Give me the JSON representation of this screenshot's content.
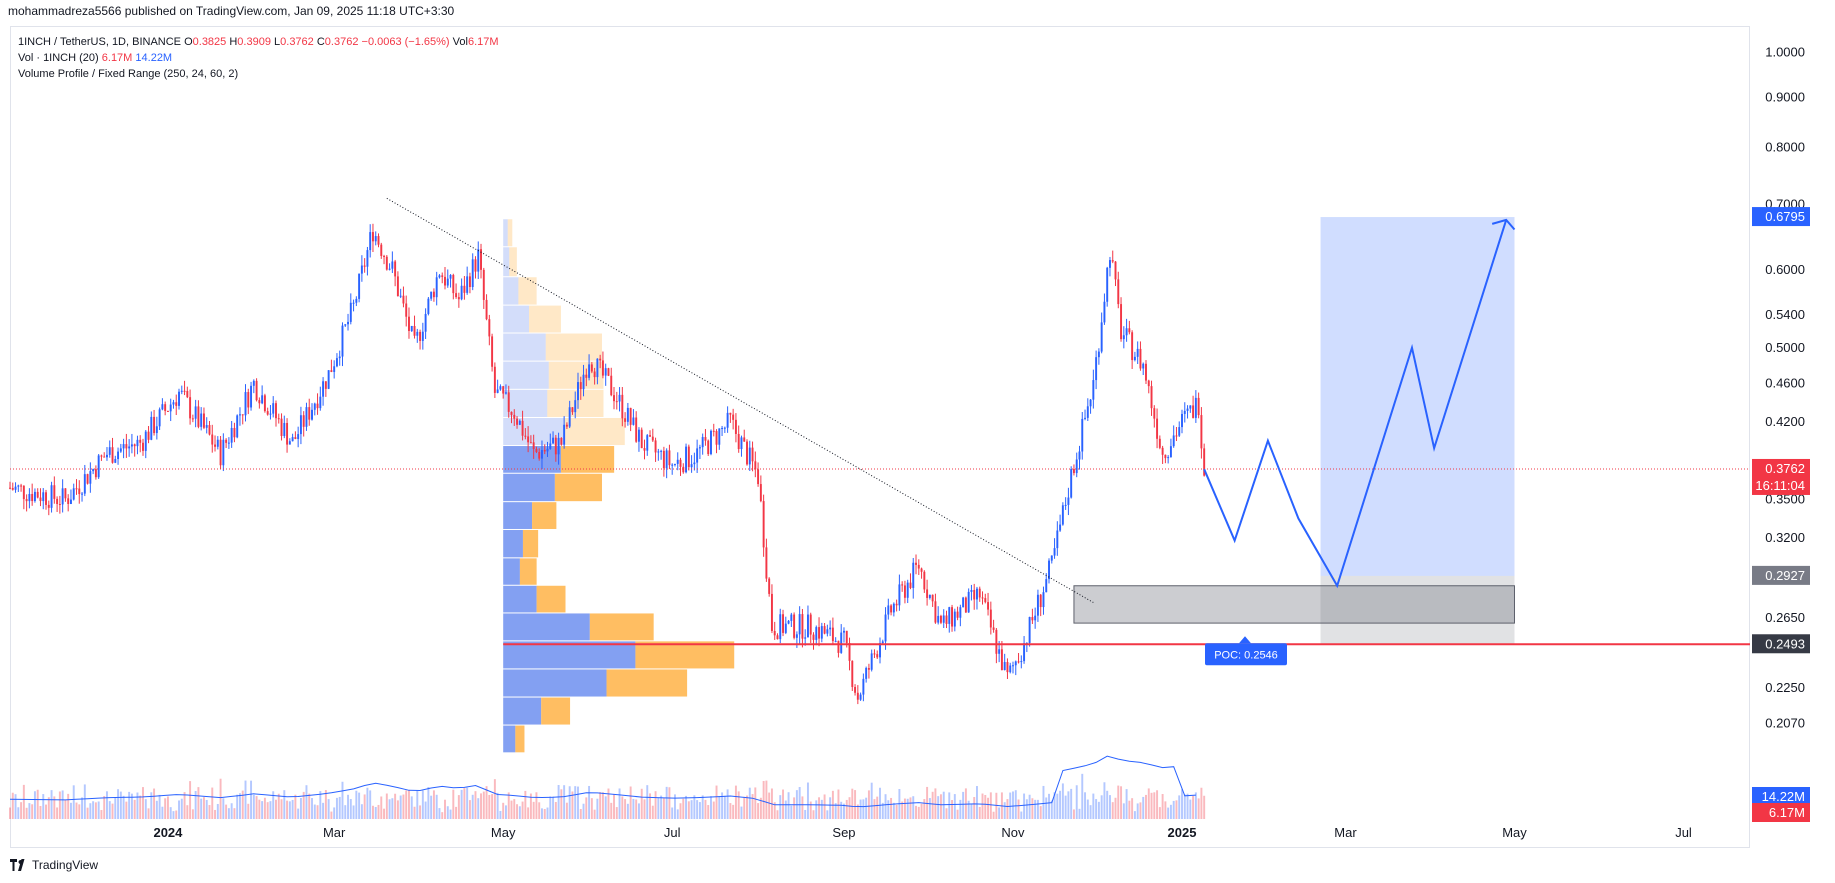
{
  "header": {
    "published": "mohammadreza5566 published on TradingView.com, Jan 09, 2025 11:18 UTC+3:30"
  },
  "legend": {
    "symbol": "1INCH / TetherUS, 1D, BINANCE",
    "ohlc": [
      {
        "k": "O",
        "v": "0.3825"
      },
      {
        "k": "H",
        "v": "0.3909"
      },
      {
        "k": "L",
        "v": "0.3762"
      },
      {
        "k": "C",
        "v": "0.3762"
      }
    ],
    "change": "−0.0063 (−1.65%)",
    "vol_key": "Vol",
    "vol_value": "6.17M",
    "vol_line_name": "Vol · 1INCH (20)",
    "vol_line_v1": "6.17M",
    "vol_line_v2": "14.22M",
    "vp_line": "Volume Profile / Fixed Range (250, 24, 60, 2)"
  },
  "price_axis": {
    "ticks": [
      "1.0000",
      "0.9000",
      "0.8000",
      "0.7000",
      "0.6000",
      "0.5400",
      "0.5000",
      "0.4600",
      "0.4200",
      "0.3500",
      "0.3200",
      "0.2650",
      "0.2250",
      "0.2070"
    ],
    "badges": [
      {
        "label": "0.6795",
        "color": "#2962ff",
        "text_color": "#ffffff"
      },
      {
        "label": "0.3762",
        "color": "#f23645",
        "text_color": "#ffffff"
      },
      {
        "label": "16:11:04",
        "color": "#f23645",
        "text_color": "#ffffff"
      },
      {
        "label": "0.2927",
        "color": "#787b86",
        "text_color": "#ffffff"
      },
      {
        "label": "0.2493",
        "color": "#363a45",
        "text_color": "#ffffff"
      },
      {
        "label": "14.22M",
        "color": "#2962ff",
        "text_color": "#ffffff"
      },
      {
        "label": "6.17M",
        "color": "#f23645",
        "text_color": "#ffffff"
      }
    ]
  },
  "time_axis": {
    "labels": [
      {
        "t": "2024",
        "bold": true
      },
      {
        "t": "Mar",
        "bold": false
      },
      {
        "t": "May",
        "bold": false
      },
      {
        "t": "Jul",
        "bold": false
      },
      {
        "t": "Sep",
        "bold": false
      },
      {
        "t": "Nov",
        "bold": false
      },
      {
        "t": "2025",
        "bold": true
      },
      {
        "t": "Mar",
        "bold": false
      },
      {
        "t": "May",
        "bold": false
      },
      {
        "t": "Jul",
        "bold": false
      }
    ]
  },
  "poc_label": "POC: 0.2546",
  "footer": {
    "brand": "TradingView"
  },
  "colors": {
    "up": "#2962ff",
    "down": "#f23645",
    "vp_up": "#6d8ff0",
    "vp_down": "#ffb347",
    "target": "#cfdcfb",
    "stop": "#c8c8c8"
  },
  "chart_data": {
    "type": "candlestick",
    "symbol": "1INCH / TetherUS",
    "interval": "1D",
    "exchange": "BINANCE",
    "y_scale": "log",
    "ylim": [
      0.19,
      1.02
    ],
    "x_range": [
      "2023-11-05",
      "2025-07-25"
    ],
    "close_path": [
      [
        "2023-11-05",
        0.36
      ],
      [
        "2023-11-25",
        0.35
      ],
      [
        "2023-12-10",
        0.39
      ],
      [
        "2023-12-22",
        0.4
      ],
      [
        "2024-01-05",
        0.45
      ],
      [
        "2024-01-20",
        0.39
      ],
      [
        "2024-02-01",
        0.46
      ],
      [
        "2024-02-15",
        0.4
      ],
      [
        "2024-02-28",
        0.47
      ],
      [
        "2024-03-08",
        0.55
      ],
      [
        "2024-03-15",
        0.66
      ],
      [
        "2024-03-22",
        0.6
      ],
      [
        "2024-03-30",
        0.5
      ],
      [
        "2024-04-08",
        0.6
      ],
      [
        "2024-04-15",
        0.56
      ],
      [
        "2024-04-22",
        0.62
      ],
      [
        "2024-04-28",
        0.45
      ],
      [
        "2024-05-05",
        0.43
      ],
      [
        "2024-05-12",
        0.39
      ],
      [
        "2024-05-22",
        0.4
      ],
      [
        "2024-06-01",
        0.49
      ],
      [
        "2024-06-10",
        0.45
      ],
      [
        "2024-06-20",
        0.4
      ],
      [
        "2024-07-01",
        0.38
      ],
      [
        "2024-07-10",
        0.39
      ],
      [
        "2024-07-22",
        0.42
      ],
      [
        "2024-08-01",
        0.37
      ],
      [
        "2024-08-06",
        0.26
      ],
      [
        "2024-08-20",
        0.26
      ],
      [
        "2024-09-01",
        0.25
      ],
      [
        "2024-09-06",
        0.22
      ],
      [
        "2024-09-18",
        0.27
      ],
      [
        "2024-09-28",
        0.3
      ],
      [
        "2024-10-06",
        0.26
      ],
      [
        "2024-10-20",
        0.28
      ],
      [
        "2024-10-30",
        0.23
      ],
      [
        "2024-11-05",
        0.25
      ],
      [
        "2024-11-15",
        0.3
      ],
      [
        "2024-11-22",
        0.37
      ],
      [
        "2024-11-30",
        0.46
      ],
      [
        "2024-12-06",
        0.63
      ],
      [
        "2024-12-10",
        0.52
      ],
      [
        "2024-12-18",
        0.48
      ],
      [
        "2024-12-25",
        0.39
      ],
      [
        "2025-01-01",
        0.42
      ],
      [
        "2025-01-07",
        0.44
      ],
      [
        "2025-01-09",
        0.3762
      ]
    ],
    "last_candle": {
      "date": "2025-01-09",
      "open": 0.3825,
      "high": 0.3909,
      "low": 0.3762,
      "close": 0.3762
    },
    "volume": {
      "last": "6.17M",
      "ma20_name": "Vol · 1INCH (20)",
      "ma20": "14.22M"
    },
    "trendline": {
      "from": [
        "2024-03-20",
        0.71
      ],
      "to": [
        "2024-11-30",
        0.275
      ],
      "style": "dotted"
    },
    "support_line": {
      "price": 0.2493,
      "color": "#f23645"
    },
    "zones": [
      {
        "name": "target",
        "from": "2025-02-20",
        "to": "2025-05-01",
        "top": 0.6795,
        "bottom": 0.2927
      },
      {
        "name": "stop",
        "from": "2025-02-20",
        "to": "2025-05-01",
        "top": 0.2927,
        "bottom": 0.2493
      },
      {
        "name": "demand",
        "from": "2024-11-23",
        "to": "2025-05-01",
        "top": 0.286,
        "bottom": 0.262
      }
    ],
    "projection": [
      [
        "2025-01-09",
        0.376
      ],
      [
        "2025-01-20",
        0.318
      ],
      [
        "2025-02-01",
        0.402
      ],
      [
        "2025-02-12",
        0.335
      ],
      [
        "2025-02-26",
        0.286
      ],
      [
        "2025-03-25",
        0.5
      ],
      [
        "2025-04-02",
        0.395
      ],
      [
        "2025-04-28",
        0.675
      ],
      [
        "2025-05-01",
        0.66
      ]
    ],
    "volume_profile": {
      "range_start": "2024-05-01",
      "poc": 0.2546,
      "rows": [
        {
          "top": 0.676,
          "bottom": 0.633,
          "up": 3,
          "down": 3
        },
        {
          "top": 0.633,
          "bottom": 0.59,
          "up": 4,
          "down": 5
        },
        {
          "top": 0.59,
          "bottom": 0.552,
          "up": 10,
          "down": 12
        },
        {
          "top": 0.552,
          "bottom": 0.517,
          "up": 17,
          "down": 21
        },
        {
          "top": 0.517,
          "bottom": 0.484,
          "up": 28,
          "down": 37
        },
        {
          "top": 0.484,
          "bottom": 0.453,
          "up": 30,
          "down": 36
        },
        {
          "top": 0.453,
          "bottom": 0.424,
          "up": 29,
          "down": 37
        },
        {
          "top": 0.424,
          "bottom": 0.397,
          "up": 40,
          "down": 40
        },
        {
          "top": 0.397,
          "bottom": 0.372,
          "up": 38,
          "down": 35
        },
        {
          "top": 0.372,
          "bottom": 0.348,
          "up": 34,
          "down": 31
        },
        {
          "top": 0.348,
          "bottom": 0.326,
          "up": 19,
          "down": 16
        },
        {
          "top": 0.326,
          "bottom": 0.305,
          "up": 13,
          "down": 10
        },
        {
          "top": 0.305,
          "bottom": 0.286,
          "up": 11,
          "down": 11
        },
        {
          "top": 0.286,
          "bottom": 0.268,
          "up": 22,
          "down": 19
        },
        {
          "top": 0.268,
          "bottom": 0.251,
          "up": 57,
          "down": 42
        },
        {
          "top": 0.251,
          "bottom": 0.235,
          "up": 87,
          "down": 65
        },
        {
          "top": 0.235,
          "bottom": 0.22,
          "up": 68,
          "down": 53
        },
        {
          "top": 0.22,
          "bottom": 0.206,
          "up": 25,
          "down": 19
        },
        {
          "top": 0.206,
          "bottom": 0.193,
          "up": 8,
          "down": 6
        }
      ]
    }
  }
}
